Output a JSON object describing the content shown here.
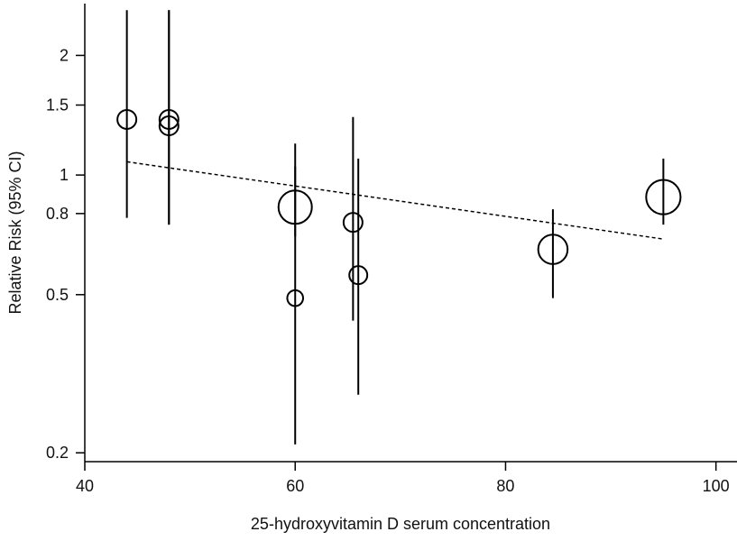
{
  "chart_data": {
    "type": "scatter",
    "title": "",
    "xlabel": "25-hydroxyvitamin D serum concentration",
    "ylabel": "Relative Risk (95% CI)",
    "y_scale": "log",
    "xlim": [
      40,
      102
    ],
    "ylim": [
      0.19,
      2.7
    ],
    "x_ticks": [
      40,
      60,
      80,
      100
    ],
    "y_ticks": [
      0.2,
      0.5,
      0.8,
      1,
      1.5,
      2
    ],
    "grid": false,
    "legend": "none",
    "points": [
      {
        "x": 44,
        "rr": 1.38,
        "ci_low": 0.78,
        "ci_high": 2.6,
        "weight": 1.0
      },
      {
        "x": 48,
        "rr": 1.38,
        "ci_low": 0.75,
        "ci_high": 2.6,
        "weight": 1.0
      },
      {
        "x": 48,
        "rr": 1.33,
        "ci_low": 0.75,
        "ci_high": 2.6,
        "weight": 1.0
      },
      {
        "x": 60,
        "rr": 0.83,
        "ci_low": 0.7,
        "ci_high": 1.2,
        "weight": 3.1
      },
      {
        "x": 60,
        "rr": 0.49,
        "ci_low": 0.21,
        "ci_high": 1.05,
        "weight": 0.7
      },
      {
        "x": 65.5,
        "rr": 0.76,
        "ci_low": 0.43,
        "ci_high": 1.4,
        "weight": 1.0
      },
      {
        "x": 66,
        "rr": 0.56,
        "ci_low": 0.28,
        "ci_high": 1.1,
        "weight": 0.9
      },
      {
        "x": 84.5,
        "rr": 0.65,
        "ci_low": 0.49,
        "ci_high": 0.82,
        "weight": 2.4
      },
      {
        "x": 95,
        "rr": 0.88,
        "ci_low": 0.75,
        "ci_high": 1.1,
        "weight": 3.3
      }
    ],
    "trend_line": {
      "x": [
        44,
        95
      ],
      "y": [
        1.08,
        0.69
      ],
      "style": "dashed"
    }
  }
}
